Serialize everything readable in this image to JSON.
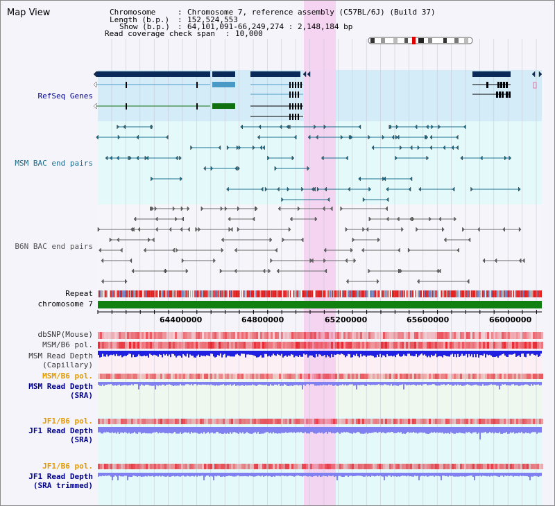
{
  "view": {
    "title": "Map View",
    "info": {
      "chromosome_label": "Chromosome",
      "chromosome_value": "Chromosome 7, reference assembly (C57BL/6J) (Build 37)",
      "length_label": "Length (b.p.)",
      "length_value": "152,524,553",
      "show_label": "Show (b.p.)",
      "show_value": "64,101,091-66,249,274 : 2,148,184 bp",
      "coverage_label": "Read coverage check span",
      "coverage_value": "10,000"
    }
  },
  "tracks": {
    "refseq": "RefSeq Genes",
    "msm_bac": "MSM BAC end pairs",
    "b6n_bac": "B6N BAC end pairs",
    "repeat": "Repeat",
    "chromosome": "chromosome 7",
    "dbsnp": "dbSNP(Mouse)",
    "msm_b6_pol": "MSM/B6 pol.",
    "msm_rd_cap_1": "MSM Read Depth",
    "msm_rd_cap_2": "(Capillary)",
    "msm_b6_pol2": "MSM/B6 pol.",
    "msm_rd_sra_1": "MSM Read Depth",
    "msm_rd_sra_2": "(SRA)",
    "jf1_b6_pol": "JF1/B6 pol.",
    "jf1_rd_sra_1": "JF1 Read Depth",
    "jf1_rd_sra_2": "(SRA)",
    "jf1_b6_pol2": "JF1/B6 pol.",
    "jf1_rd_trim_1": "JF1 Read Depth",
    "jf1_rd_trim_2": "(SRA trimmed)"
  },
  "axis": {
    "ticks": [
      "64400000",
      "64800000",
      "65200000",
      "65600000",
      "66000000"
    ]
  },
  "colors": {
    "highlight": "#f5d0f0",
    "refseq_bg": "#d4ecf8",
    "track_bg": "#e4fafa",
    "gene_dark": "#0a2a5a",
    "gene_mid": "#4a9ac8",
    "gene_green": "#107010",
    "msm_bac": "#1a7090",
    "b6n_bac": "#6a6a6a",
    "repeat_red": "#e02020",
    "chrom_green": "#108010",
    "depth_blue": "#2020e0",
    "depth_light": "#8080f0",
    "label_blue": "#00008b",
    "label_teal": "#1a6b8a",
    "label_orange": "#e39a00"
  }
}
